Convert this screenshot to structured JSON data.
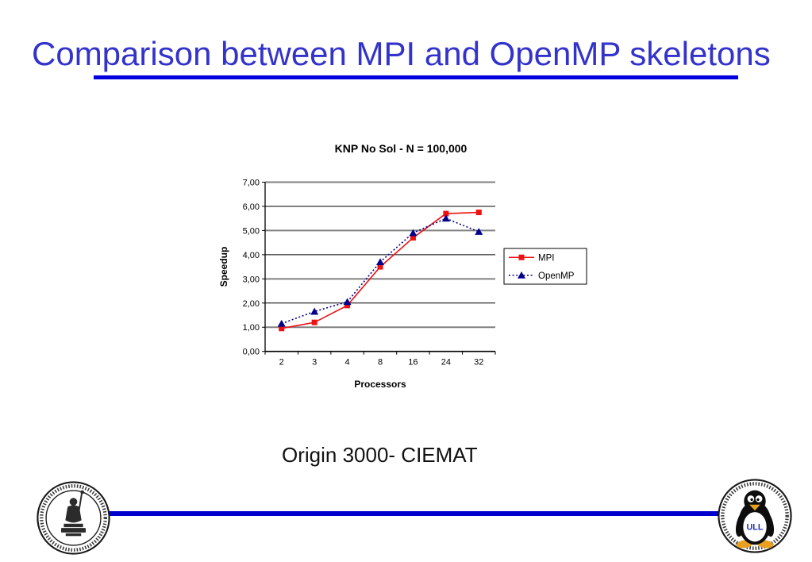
{
  "slide": {
    "title": "Comparison between MPI and OpenMP skeletons",
    "caption": "Origin 3000- CIEMAT"
  },
  "colors": {
    "title_text": "#3333CC",
    "rule_blue": "#0000DD",
    "bottom_rule_blue": "#0000CC",
    "grid_major": "#000000",
    "grid_minor": "#808080",
    "axis": "#000000",
    "text": "#000000",
    "legend_border": "#000000",
    "mpi_red": "#EE1111",
    "openmp_navy": "#00008B"
  },
  "chart_data": {
    "type": "line",
    "title": "KNP No Sol - N = 100,000",
    "categories": [
      "2",
      "3",
      "4",
      "8",
      "16",
      "24",
      "32"
    ],
    "series": [
      {
        "name": "MPI",
        "color": "#EE1111",
        "marker": "square",
        "line": "solid",
        "values": [
          0.95,
          1.2,
          1.9,
          3.5,
          4.7,
          5.7,
          5.75
        ]
      },
      {
        "name": "OpenMP",
        "color": "#00008B",
        "marker": "triangle",
        "line": "dotted",
        "values": [
          1.15,
          1.65,
          2.05,
          3.7,
          4.9,
          5.5,
          4.95
        ]
      }
    ],
    "xlabel": "Processors",
    "ylabel": "Speedup",
    "ylim": [
      0,
      7
    ],
    "ytick_step": 1,
    "ytick_labels": [
      "0,00",
      "1,00",
      "2,00",
      "3,00",
      "4,00",
      "5,00",
      "6,00",
      "7,00"
    ],
    "legend_position": "right",
    "grid": "horizontal"
  },
  "logos": {
    "left": "university-seal",
    "right": "university-seal-with-tux",
    "tux_text": "ULL"
  }
}
